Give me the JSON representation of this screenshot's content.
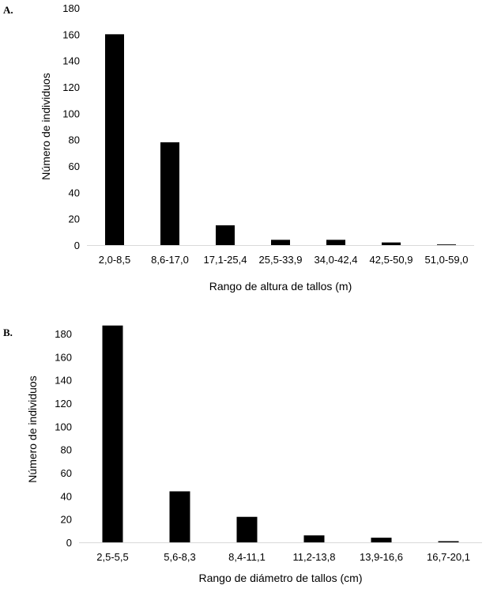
{
  "chart_data": [
    {
      "panel": "A.",
      "type": "bar",
      "xlabel": "Rango de altura de tallos (m)",
      "ylabel": "Número de individuos",
      "categories": [
        "2,0-8,5",
        "8,6-17,0",
        "17,1-25,4",
        "25,5-33,9",
        "34,0-42,4",
        "42,5-50,9",
        "51,0-59,0"
      ],
      "values": [
        160,
        78,
        15,
        4,
        4,
        2,
        0.5
      ],
      "ylim": [
        0,
        180
      ],
      "yticks": [
        0,
        20,
        40,
        60,
        80,
        100,
        120,
        140,
        160,
        180
      ],
      "grid": false,
      "legend": "none",
      "bar_color": "#000000"
    },
    {
      "panel": "B.",
      "type": "bar",
      "xlabel": "Rango de diámetro de tallos (cm)",
      "ylabel": "Número de individuos",
      "categories": [
        "2,5-5,5",
        "5,6-8,3",
        "8,4-11,1",
        "11,2-13,8",
        "13,9-16,6",
        "16,7-20,1"
      ],
      "values": [
        187,
        44,
        22,
        6,
        4,
        1
      ],
      "ylim": [
        0,
        195
      ],
      "yticks": [
        0,
        20,
        40,
        60,
        80,
        100,
        120,
        140,
        160,
        180
      ],
      "grid": false,
      "legend": "none",
      "bar_color": "#000000"
    }
  ]
}
